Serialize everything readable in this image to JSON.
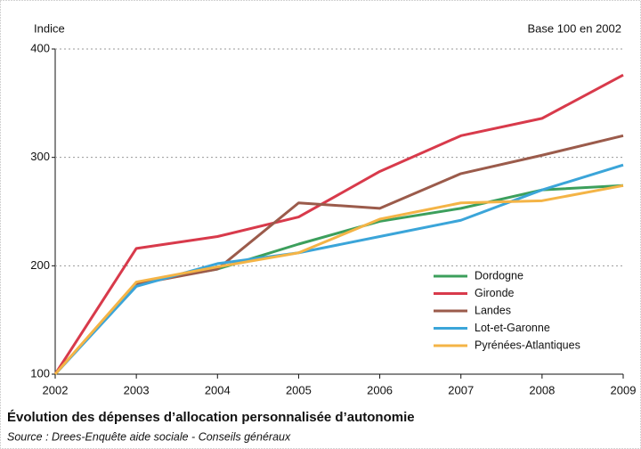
{
  "chart_data": {
    "type": "line",
    "y_label": "Indice",
    "annotation": "Base 100 en 2002",
    "title": "Évolution des dépenses d’allocation personnalisée d’autonomie",
    "source": "Source : Drees-Enquête aide sociale - Conseils généraux",
    "x": [
      2002,
      2003,
      2004,
      2005,
      2006,
      2007,
      2008,
      2009
    ],
    "xlim": [
      2002,
      2009
    ],
    "xticks": [
      2002,
      2003,
      2004,
      2005,
      2006,
      2007,
      2008,
      2009
    ],
    "ylim": [
      100,
      400
    ],
    "yticks": [
      100,
      200,
      300,
      400
    ],
    "grid": true,
    "legend": "lower right",
    "series": [
      {
        "name": "Dordogne",
        "color": "#3c9f5c",
        "values": [
          100,
          184,
          197,
          220,
          241,
          253,
          270,
          274
        ]
      },
      {
        "name": "Gironde",
        "color": "#d83a4b",
        "values": [
          100,
          216,
          227,
          245,
          287,
          320,
          336,
          376
        ]
      },
      {
        "name": "Landes",
        "color": "#9b5b4b",
        "values": [
          100,
          183,
          197,
          258,
          253,
          285,
          302,
          320
        ]
      },
      {
        "name": "Lot-et-Garonne",
        "color": "#3ba5d9",
        "values": [
          100,
          181,
          202,
          212,
          227,
          242,
          270,
          293
        ]
      },
      {
        "name": "Pyrénées-Atlantiques",
        "color": "#f4b446",
        "values": [
          100,
          185,
          199,
          212,
          243,
          258,
          260,
          274
        ]
      }
    ]
  }
}
